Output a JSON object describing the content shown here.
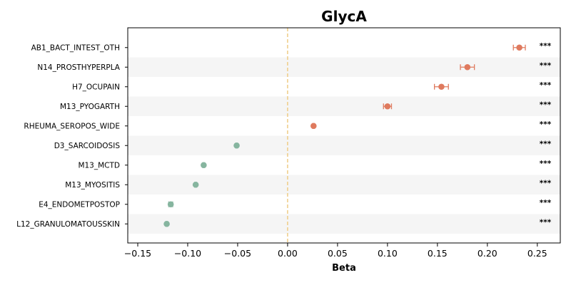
{
  "chart_data": {
    "type": "scatter",
    "subtype": "forest-plot",
    "title": "GlycA",
    "xlabel": "Beta",
    "ylabel": "",
    "xlim": [
      -0.16,
      0.273
    ],
    "xticks": [
      -0.15,
      -0.1,
      -0.05,
      0.0,
      0.05,
      0.1,
      0.15,
      0.2,
      0.25
    ],
    "xtick_labels": [
      "−0.15",
      "−0.10",
      "−0.05",
      "0.00",
      "0.05",
      "0.10",
      "0.15",
      "0.20",
      "0.25"
    ],
    "reference_line": 0,
    "grid": false,
    "row_banding": true,
    "colors": {
      "positive": "#df7a5e",
      "negative": "#86b59f",
      "reference_line": "#f0cf8c",
      "band": "#f5f5f5"
    },
    "categories": [
      "AB1_BACT_INTEST_OTH",
      "N14_PROSTHYPERPLA",
      "H7_OCUPAIN",
      "M13_PYOGARTH",
      "RHEUMA_SEROPOS_WIDE",
      "D3_SARCOIDOSIS",
      "M13_MCTD",
      "M13_MYOSITIS",
      "E4_ENDOMETPOSTOP",
      "L12_GRANULOMATOUSSKIN"
    ],
    "beta": [
      0.232,
      0.18,
      0.154,
      0.1,
      0.026,
      -0.051,
      -0.084,
      -0.092,
      -0.117,
      -0.121
    ],
    "ci_low": [
      0.226,
      0.173,
      0.147,
      0.096,
      0.025,
      -0.052,
      -0.085,
      -0.093,
      -0.119,
      -0.122
    ],
    "ci_high": [
      0.238,
      0.187,
      0.161,
      0.104,
      0.027,
      -0.05,
      -0.083,
      -0.091,
      -0.115,
      -0.12
    ],
    "significance": [
      "***",
      "***",
      "***",
      "***",
      "***",
      "***",
      "***",
      "***",
      "***",
      "***"
    ]
  }
}
